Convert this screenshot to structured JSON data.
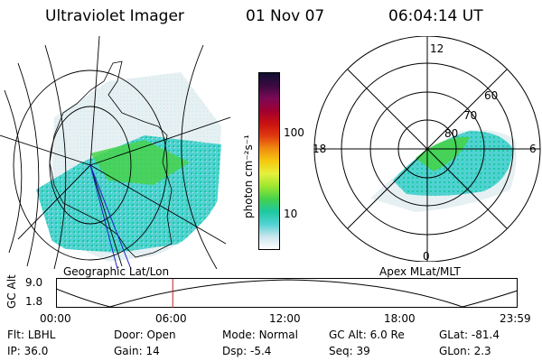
{
  "header": {
    "instrument": "Ultraviolet Imager",
    "date": "01 Nov 07",
    "time": "06:04:14 UT"
  },
  "colorbar": {
    "unit_label": "photon cm⁻²s⁻¹",
    "ticks": [
      "100",
      "10"
    ],
    "colors": [
      "#101030",
      "#3a0a40",
      "#7a0a55",
      "#a00030",
      "#c81010",
      "#e03a10",
      "#f08c10",
      "#f5c810",
      "#e6f03c",
      "#9ee630",
      "#46d24b",
      "#1ec8a0",
      "#50d2d2",
      "#c8e6ec",
      "#ffffff"
    ]
  },
  "geo_map": {
    "caption": "Geographic Lat/Lon"
  },
  "polar_plot": {
    "caption": "Apex MLat/MLT",
    "mlt_labels": [
      "12",
      "18",
      "6",
      "0"
    ],
    "lat_labels": [
      "60",
      "70",
      "80"
    ]
  },
  "timeline": {
    "ylabel": "GC Alt",
    "yticks": [
      "9.0",
      "1.8"
    ],
    "xticks": [
      "00:00",
      "06:00",
      "12:00",
      "18:00",
      "23:59"
    ],
    "current_time_hours": 6.07
  },
  "status": {
    "filter_label": "Flt:",
    "filter": "LBHL",
    "ip_label": "IP:",
    "ip": "36.0",
    "door_label": "Door:",
    "door": "Open",
    "gain_label": "Gain:",
    "gain": "14",
    "mode_label": "Mode:",
    "mode": "Normal",
    "dsp_label": "Dsp:",
    "dsp": "-5.4",
    "gcalt_label": "GC Alt:",
    "gcalt": "6.0 Re",
    "seq_label": "Seq:",
    "seq": "39",
    "glat_label": "GLat:",
    "glat": "-81.4",
    "glon_label": "GLon:",
    "glon": "2.3"
  }
}
